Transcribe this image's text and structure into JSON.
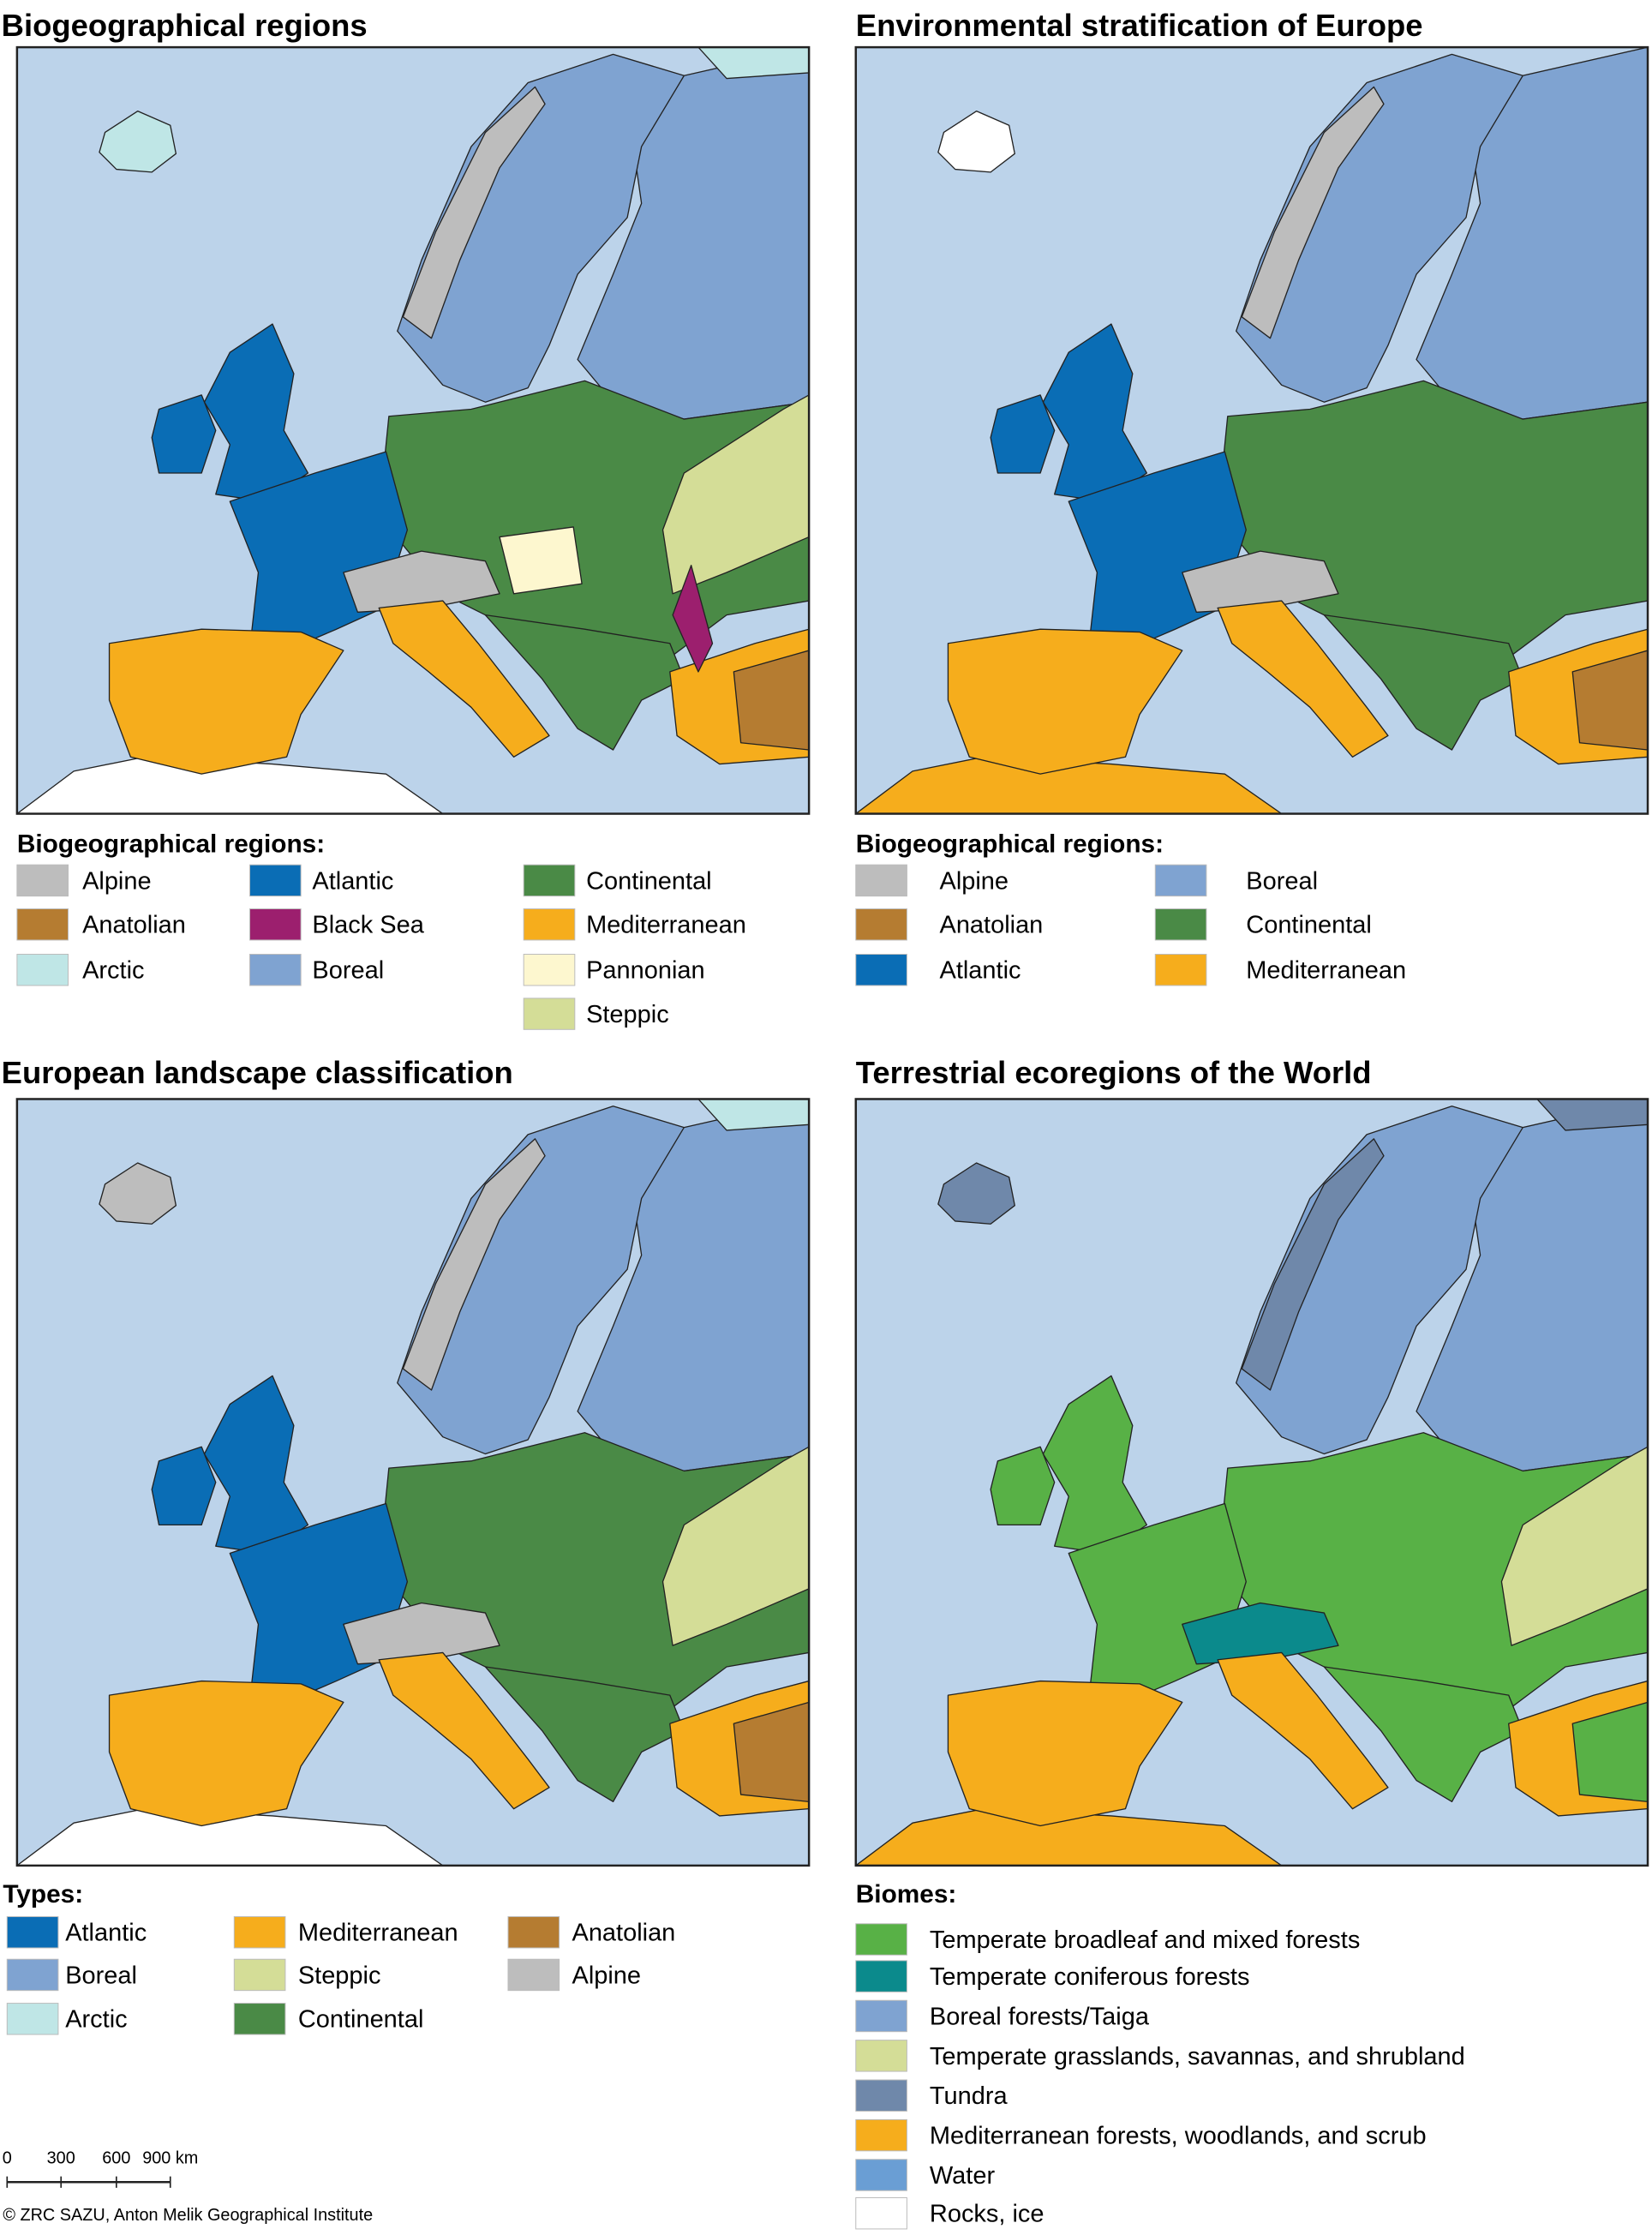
{
  "panels": [
    {
      "title": "Biogeographical regions",
      "legend_title": "Biogeographical regions:",
      "legend": [
        {
          "label": "Alpine",
          "color": "#bdbdbd"
        },
        {
          "label": "Anatolian",
          "color": "#b57c31"
        },
        {
          "label": "Arctic",
          "color": "#bfe6e6"
        },
        {
          "label": "Atlantic",
          "color": "#0a6db5"
        },
        {
          "label": "Black Sea",
          "color": "#9c1f6e"
        },
        {
          "label": "Boreal",
          "color": "#7fa3d1"
        },
        {
          "label": "Continental",
          "color": "#4a8a46"
        },
        {
          "label": "Mediterranean",
          "color": "#f6ad1c"
        },
        {
          "label": "Pannonian",
          "color": "#fdf7cf"
        },
        {
          "label": "Steppic",
          "color": "#d4dd97"
        }
      ]
    },
    {
      "title": "Environmental stratification of Europe",
      "legend_title": "Biogeographical regions:",
      "legend": [
        {
          "label": "Alpine",
          "color": "#bdbdbd"
        },
        {
          "label": "Anatolian",
          "color": "#b57c31"
        },
        {
          "label": "Atlantic",
          "color": "#0a6db5"
        },
        {
          "label": "Boreal",
          "color": "#7fa3d1"
        },
        {
          "label": "Continental",
          "color": "#4a8a46"
        },
        {
          "label": "Mediterranean",
          "color": "#f6ad1c"
        }
      ]
    },
    {
      "title": "European landscape classification",
      "legend_title": "Types:",
      "legend": [
        {
          "label": "Atlantic",
          "color": "#0a6db5"
        },
        {
          "label": "Boreal",
          "color": "#7fa3d1"
        },
        {
          "label": "Arctic",
          "color": "#bfe6e6"
        },
        {
          "label": "Mediterranean",
          "color": "#f6ad1c"
        },
        {
          "label": "Steppic",
          "color": "#d4dd97"
        },
        {
          "label": "Continental",
          "color": "#4a8a46"
        },
        {
          "label": "Anatolian",
          "color": "#b57c31"
        },
        {
          "label": "Alpine",
          "color": "#bdbdbd"
        }
      ]
    },
    {
      "title": "Terrestrial ecoregions of the World",
      "legend_title": "Biomes:",
      "legend": [
        {
          "label": "Temperate broadleaf and mixed forests",
          "color": "#58b146"
        },
        {
          "label": "Temperate coniferous forests",
          "color": "#0b8a8c"
        },
        {
          "label": "Boreal forests/Taiga",
          "color": "#7fa3d1"
        },
        {
          "label": "Temperate grasslands, savannas, and shrubland",
          "color": "#d4dd97"
        },
        {
          "label": "Tundra",
          "color": "#6f88aa"
        },
        {
          "label": "Mediterranean forests, woodlands, and scrub",
          "color": "#f6ad1c"
        },
        {
          "label": "Water",
          "color": "#6a9ed4"
        },
        {
          "label": "Rocks, ice",
          "color": "#ffffff"
        }
      ]
    }
  ],
  "scale_bar": {
    "labels": [
      "0",
      "300",
      "600",
      "900 km"
    ]
  },
  "credit": "© ZRC SAZU, Anton Melik Geographical Institute"
}
